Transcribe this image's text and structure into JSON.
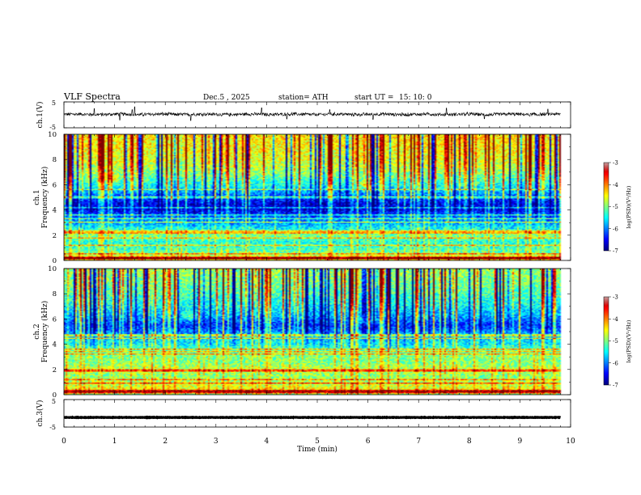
{
  "header": {
    "title": "VLF  Spectra",
    "date": "Dec.5  , 2025",
    "station": "station= ATH",
    "start_label": "start  UT  =",
    "start_time": "15: 10: 0"
  },
  "chart_data": [
    {
      "type": "line",
      "id": "ch1-waveform",
      "ylabel": "ch.1(V)",
      "ylim": [
        -5,
        5
      ],
      "yticks": [
        "5",
        "-5"
      ],
      "xlim": [
        0,
        10
      ],
      "trace_end_min": 9.8,
      "baseline_v": 0.2,
      "description_of_values": "noisy waveform around 0 V with spikes up to about +3 V and down to about -2 V",
      "spikes": [
        {
          "t": 0.6,
          "v": 2.4
        },
        {
          "t": 1.1,
          "v": -2.0
        },
        {
          "t": 1.35,
          "v": 2.0
        },
        {
          "t": 1.4,
          "v": 3.1
        },
        {
          "t": 2.5,
          "v": -2.2
        },
        {
          "t": 3.9,
          "v": 2.7
        },
        {
          "t": 4.4,
          "v": -1.6
        },
        {
          "t": 5.25,
          "v": 2.0
        },
        {
          "t": 6.1,
          "v": -1.8
        },
        {
          "t": 7.55,
          "v": 2.6
        },
        {
          "t": 8.3,
          "v": -1.5
        },
        {
          "t": 9.55,
          "v": 2.2
        }
      ]
    },
    {
      "type": "heatmap",
      "id": "ch1-spectrogram",
      "ylabel_top": "ch.1",
      "ylabel": "Frequency  (kHz)",
      "ylim": [
        0,
        10
      ],
      "yticks": [
        "0",
        "2",
        "4",
        "6",
        "8",
        "10"
      ],
      "xlim": [
        0,
        10
      ],
      "data_end_min": 9.8,
      "colorbar": {
        "label": "log(PSD)(V²/Hz)",
        "range": [
          -7,
          -3
        ],
        "ticks": [
          "-3",
          "-4",
          "-5",
          "-6",
          "-7"
        ]
      },
      "spectral_profile": [
        {
          "f": 0.1,
          "level": -3.6
        },
        {
          "f": 0.5,
          "level": -5.0
        },
        {
          "f": 1.0,
          "level": -5.3
        },
        {
          "f": 1.5,
          "level": -5.4
        },
        {
          "f": 2.0,
          "level": -5.0
        },
        {
          "f": 2.5,
          "level": -5.5
        },
        {
          "f": 3.0,
          "level": -5.9
        },
        {
          "f": 3.5,
          "level": -6.1
        },
        {
          "f": 4.0,
          "level": -6.6
        },
        {
          "f": 4.5,
          "level": -6.6
        },
        {
          "f": 5.0,
          "level": -6.2
        },
        {
          "f": 5.5,
          "level": -5.8
        },
        {
          "f": 6.0,
          "level": -5.4
        },
        {
          "f": 7.0,
          "level": -4.9
        },
        {
          "f": 8.0,
          "level": -4.6
        },
        {
          "f": 9.0,
          "level": -4.5
        },
        {
          "f": 10.0,
          "level": -4.4
        }
      ],
      "lines_khz": [
        0.2,
        0.5,
        1.2,
        1.8,
        2.2,
        2.3,
        3.0,
        3.3,
        3.6,
        4.2,
        5.0,
        5.6
      ],
      "hiss_patches": [
        {
          "t": 6.0,
          "f": 6.0
        },
        {
          "t": 0.9,
          "f": 6.5
        }
      ]
    },
    {
      "type": "heatmap",
      "id": "ch2-spectrogram",
      "ylabel_top": "ch.2",
      "ylabel": "Frequency  (kHz)",
      "ylim": [
        0,
        10
      ],
      "yticks": [
        "0",
        "2",
        "4",
        "6",
        "8",
        "10"
      ],
      "xlim": [
        0,
        10
      ],
      "data_end_min": 9.8,
      "colorbar": {
        "label": "log(PSD)(V²/Hz)",
        "range": [
          -7,
          -3
        ],
        "ticks": [
          "-3",
          "-4",
          "-5",
          "-6",
          "-7"
        ]
      },
      "spectral_profile": [
        {
          "f": 0.1,
          "level": -3.6
        },
        {
          "f": 0.5,
          "level": -4.6
        },
        {
          "f": 1.0,
          "level": -4.8
        },
        {
          "f": 1.5,
          "level": -5.0
        },
        {
          "f": 2.0,
          "level": -4.7
        },
        {
          "f": 2.5,
          "level": -5.0
        },
        {
          "f": 3.0,
          "level": -5.0
        },
        {
          "f": 3.5,
          "level": -5.1
        },
        {
          "f": 4.0,
          "level": -5.5
        },
        {
          "f": 4.5,
          "level": -5.6
        },
        {
          "f": 5.0,
          "level": -6.0
        },
        {
          "f": 5.5,
          "level": -6.3
        },
        {
          "f": 6.0,
          "level": -6.0
        },
        {
          "f": 7.0,
          "level": -5.5
        },
        {
          "f": 8.0,
          "level": -5.2
        },
        {
          "f": 9.0,
          "level": -5.0
        },
        {
          "f": 10.0,
          "level": -4.9
        }
      ],
      "lines_khz": [
        0.3,
        0.9,
        1.2,
        1.9,
        2.0,
        3.2,
        3.4,
        3.6,
        4.5,
        4.7
      ],
      "hiss_patches": [
        {
          "t": 6.0,
          "f": 5.9
        },
        {
          "t": 2.5,
          "f": 6.2
        }
      ]
    },
    {
      "type": "line",
      "id": "ch3-waveform",
      "ylabel": "ch.3(V)",
      "ylim": [
        -5,
        5
      ],
      "yticks": [
        "5",
        "-5"
      ],
      "xlim": [
        0,
        10
      ],
      "trace_end_min": 9.8,
      "baseline_v": -1.5,
      "description_of_values": "flat thick trace at about -1.5 V"
    }
  ],
  "x_axis": {
    "label": "Time  (min)",
    "ticks": [
      "0",
      "1",
      "2",
      "3",
      "4",
      "5",
      "6",
      "7",
      "8",
      "9",
      "10"
    ]
  }
}
